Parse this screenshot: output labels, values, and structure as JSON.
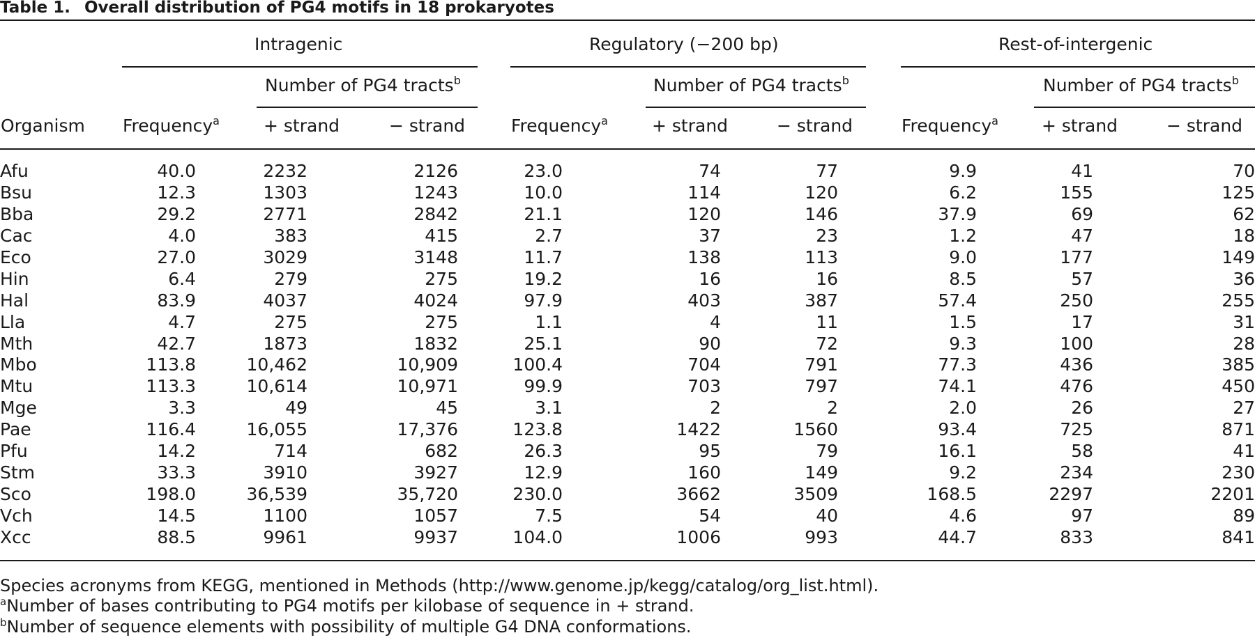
{
  "table": {
    "label": "Table 1.",
    "caption": "Overall distribution of PG4 motifs in 18 prokaryotes",
    "groups": [
      "Intragenic",
      "Regulatory (−200 bp)",
      "Rest-of-intergenic"
    ],
    "subgroup_label": "Number of PG4 tracts",
    "subgroup_sup": "b",
    "col_organism": "Organism",
    "col_frequency": "Frequency",
    "col_frequency_sup": "a",
    "col_plus": "+ strand",
    "col_minus": "− strand",
    "rows": [
      [
        "Afu",
        "40.0",
        "2232",
        "2126",
        "23.0",
        "74",
        "77",
        "9.9",
        "41",
        "70"
      ],
      [
        "Bsu",
        "12.3",
        "1303",
        "1243",
        "10.0",
        "114",
        "120",
        "6.2",
        "155",
        "125"
      ],
      [
        "Bba",
        "29.2",
        "2771",
        "2842",
        "21.1",
        "120",
        "146",
        "37.9",
        "69",
        "62"
      ],
      [
        "Cac",
        "4.0",
        "383",
        "415",
        "2.7",
        "37",
        "23",
        "1.2",
        "47",
        "18"
      ],
      [
        "Eco",
        "27.0",
        "3029",
        "3148",
        "11.7",
        "138",
        "113",
        "9.0",
        "177",
        "149"
      ],
      [
        "Hin",
        "6.4",
        "279",
        "275",
        "19.2",
        "16",
        "16",
        "8.5",
        "57",
        "36"
      ],
      [
        "Hal",
        "83.9",
        "4037",
        "4024",
        "97.9",
        "403",
        "387",
        "57.4",
        "250",
        "255"
      ],
      [
        "Lla",
        "4.7",
        "275",
        "275",
        "1.1",
        "4",
        "11",
        "1.5",
        "17",
        "31"
      ],
      [
        "Mth",
        "42.7",
        "1873",
        "1832",
        "25.1",
        "90",
        "72",
        "9.3",
        "100",
        "28"
      ],
      [
        "Mbo",
        "113.8",
        "10,462",
        "10,909",
        "100.4",
        "704",
        "791",
        "77.3",
        "436",
        "385"
      ],
      [
        "Mtu",
        "113.3",
        "10,614",
        "10,971",
        "99.9",
        "703",
        "797",
        "74.1",
        "476",
        "450"
      ],
      [
        "Mge",
        "3.3",
        "49",
        "45",
        "3.1",
        "2",
        "2",
        "2.0",
        "26",
        "27"
      ],
      [
        "Pae",
        "116.4",
        "16,055",
        "17,376",
        "123.8",
        "1422",
        "1560",
        "93.4",
        "725",
        "871"
      ],
      [
        "Pfu",
        "14.2",
        "714",
        "682",
        "26.3",
        "95",
        "79",
        "16.1",
        "58",
        "41"
      ],
      [
        "Stm",
        "33.3",
        "3910",
        "3927",
        "12.9",
        "160",
        "149",
        "9.2",
        "234",
        "230"
      ],
      [
        "Sco",
        "198.0",
        "36,539",
        "35,720",
        "230.0",
        "3662",
        "3509",
        "168.5",
        "2297",
        "2201"
      ],
      [
        "Vch",
        "14.5",
        "1100",
        "1057",
        "7.5",
        "54",
        "40",
        "4.6",
        "97",
        "89"
      ],
      [
        "Xcc",
        "88.5",
        "9961",
        "9937",
        "104.0",
        "1006",
        "993",
        "44.7",
        "833",
        "841"
      ]
    ]
  },
  "footnotes": {
    "source": "Species acronyms from KEGG, mentioned in Methods (http://www.genome.jp/kegg/catalog/org_list.html).",
    "a_mark": "a",
    "a_text": "Number of bases contributing to PG4 motifs per kilobase of sequence in + strand.",
    "b_mark": "b",
    "b_text": "Number of sequence elements with possibility of multiple G4 DNA conformations."
  }
}
